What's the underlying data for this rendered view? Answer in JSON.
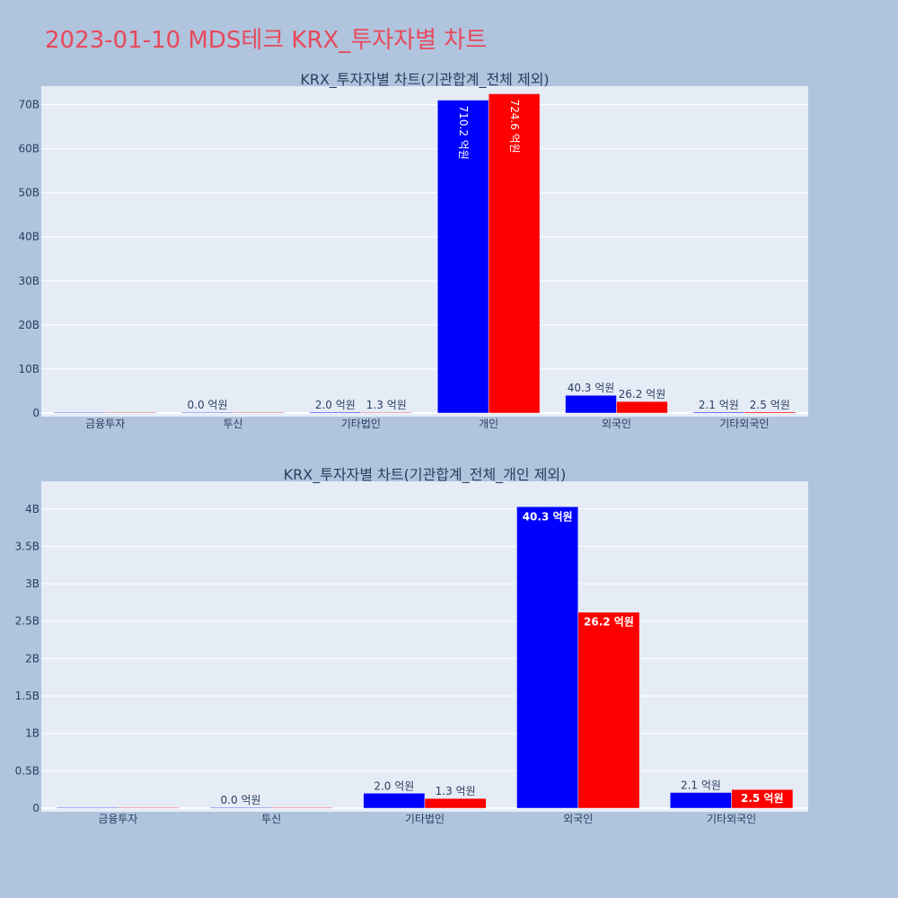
{
  "page_title": "2023-01-10 MDS테크 KRX_투자자별 차트",
  "colors": {
    "background": "#b0c4de",
    "plot_bg": "#e5ecf6",
    "series1": "#0000ff",
    "series2": "#ff0000",
    "title": "#e8495b"
  },
  "chart_data": [
    {
      "type": "bar",
      "title": "KRX_투자자별 차트(기관합계_전체 제외)",
      "categories": [
        "금융투자",
        "투신",
        "기타법인",
        "개인",
        "외국인",
        "기타외국인"
      ],
      "ylim": [
        0,
        73000000000
      ],
      "yticks": [
        0,
        10000000000,
        20000000000,
        30000000000,
        40000000000,
        50000000000,
        60000000000,
        70000000000
      ],
      "ytick_labels": [
        "0",
        "10B",
        "20B",
        "30B",
        "40B",
        "50B",
        "60B",
        "70B"
      ],
      "grid": true,
      "series": [
        {
          "values": [
            0,
            0,
            200000000,
            71020000000,
            4030000000,
            210000000
          ],
          "labels": [
            "",
            "0.0 억원",
            "2.0 억원",
            "710.2 억원",
            "40.3 억원",
            "2.1 억원"
          ]
        },
        {
          "values": [
            0,
            0,
            130000000,
            72460000000,
            2620000000,
            250000000
          ],
          "labels": [
            "",
            "",
            "1.3 억원",
            "724.6 억원",
            "26.2 억원",
            "2.5 억원"
          ]
        }
      ]
    },
    {
      "type": "bar",
      "title": "KRX_투자자별 차트(기관합계_전체_개인 제외)",
      "categories": [
        "금융투자",
        "투신",
        "기타법인",
        "외국인",
        "기타외국인"
      ],
      "ylim": [
        0,
        4300000000
      ],
      "yticks": [
        0,
        500000000,
        1000000000,
        1500000000,
        2000000000,
        2500000000,
        3000000000,
        3500000000,
        4000000000
      ],
      "ytick_labels": [
        "0",
        "0.5B",
        "1B",
        "1.5B",
        "2B",
        "2.5B",
        "3B",
        "3.5B",
        "4B"
      ],
      "grid": true,
      "series": [
        {
          "values": [
            0,
            0,
            200000000,
            4030000000,
            210000000
          ],
          "labels": [
            "",
            "0.0 억원",
            "2.0 억원",
            "40.3 억원",
            "2.1 억원"
          ]
        },
        {
          "values": [
            0,
            0,
            130000000,
            2620000000,
            250000000
          ],
          "labels": [
            "",
            "",
            "1.3 억원",
            "26.2 억원",
            "2.5 억원"
          ]
        }
      ]
    }
  ]
}
